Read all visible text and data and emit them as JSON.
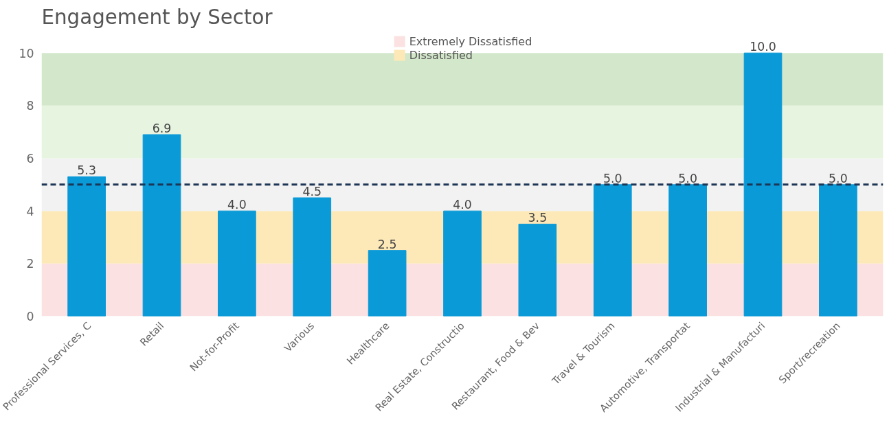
{
  "chart_data": {
    "type": "bar",
    "title": "Engagement by Sector",
    "categories": [
      "Professional Services, C",
      "Retail",
      "Not-for-Profit",
      "Various",
      "Healthcare",
      "Real Estate, Constructio",
      "Restaurant, Food & Bev",
      "Travel & Tourism",
      "Automotive, Transportat",
      "Industrial & Manufacturi",
      "Sport/recreation"
    ],
    "series": [
      {
        "color": "#0a9ad8",
        "values": [
          5.3,
          6.9,
          4.0,
          4.5,
          2.5,
          4.0,
          3.5,
          5.0,
          5.0,
          10.0,
          5.0
        ],
        "value_labels": [
          "5.3",
          "6.9",
          "4.0",
          "4.5",
          "2.5",
          "4.0",
          "3.5",
          "5.0",
          "5.0",
          "10.0",
          "5.0"
        ]
      }
    ],
    "ylim": [
      0,
      10
    ],
    "yticks": [
      0,
      2,
      4,
      6,
      8,
      10
    ],
    "grid": false,
    "legend": "top",
    "bands": [
      {
        "axis": "y",
        "from": 0,
        "to": 2,
        "label": "Extremely Dissatisfied",
        "color": "#fbe1e1"
      },
      {
        "axis": "y",
        "from": 2,
        "to": 4,
        "label": "Dissatisfied",
        "color": "#fde9b8"
      },
      {
        "axis": "y",
        "from": 4,
        "to": 6,
        "color": "#f2f2f2"
      },
      {
        "axis": "y",
        "from": 6,
        "to": 8,
        "color": "#e6f4e0"
      },
      {
        "axis": "y",
        "from": 8,
        "to": 10,
        "color": "#d3e8cb"
      }
    ],
    "ref_lines": [
      {
        "axis": "y",
        "value": 5,
        "color": "#1d3656",
        "line_style": "dashed"
      }
    ]
  }
}
